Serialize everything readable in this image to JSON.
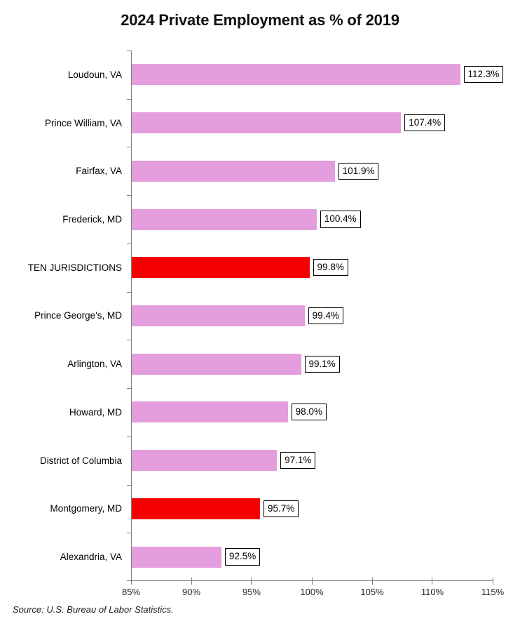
{
  "source_note": "Source: U.S. Bureau of Labor Statistics.",
  "chart_data": {
    "type": "bar",
    "orientation": "horizontal",
    "title": "2024 Private Employment as % of 2019",
    "categories": [
      "Loudoun, VA",
      "Prince William, VA",
      "Fairfax, VA",
      "Frederick, MD",
      "TEN JURISDICTIONS",
      "Prince George's, MD",
      "Arlington, VA",
      "Howard, MD",
      "District of Columbia",
      "Montgomery, MD",
      "Alexandria, VA"
    ],
    "values": [
      112.3,
      107.4,
      101.9,
      100.4,
      99.8,
      99.4,
      99.1,
      98.0,
      97.1,
      95.7,
      92.5
    ],
    "labels": [
      "112.3%",
      "107.4%",
      "101.9%",
      "100.4%",
      "99.8%",
      "99.4%",
      "99.1%",
      "98.0%",
      "97.1%",
      "95.7%",
      "92.5%"
    ],
    "highlight_indices": [
      4,
      9
    ],
    "xlabel": "",
    "ylabel": "",
    "xlim": [
      85,
      115
    ],
    "x_ticks": [
      "85%",
      "90%",
      "95%",
      "100%",
      "105%",
      "110%",
      "115%"
    ],
    "x_tick_values": [
      85,
      90,
      95,
      100,
      105,
      110,
      115
    ],
    "grid": false,
    "legend": false,
    "data_labels_boxed": true,
    "colors": {
      "bar": "#E49EDD",
      "highlight": "#F40000",
      "axis": "#808080",
      "label_box_border": "#000000",
      "background": "#FFFFFF"
    }
  }
}
